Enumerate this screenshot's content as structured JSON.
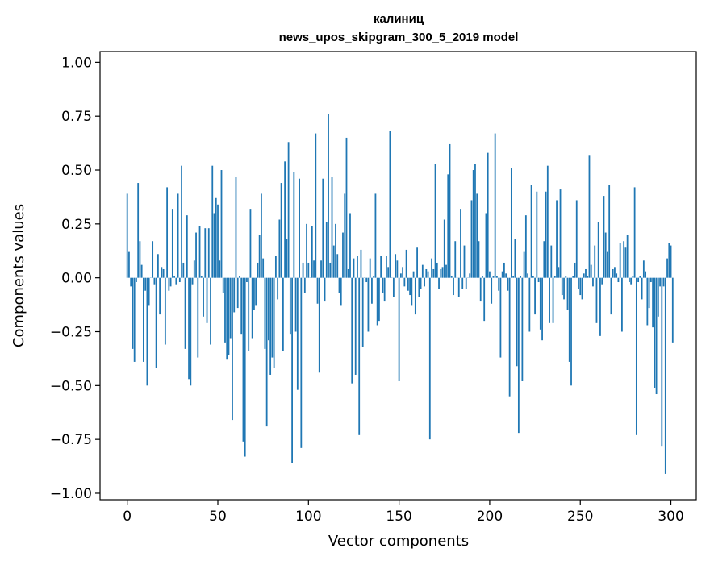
{
  "chart_data": {
    "type": "bar",
    "title": "калиниц",
    "subtitle": "news_upos_skipgram_300_5_2019 model",
    "xlabel": "Vector components",
    "ylabel": "Components values",
    "xlim": [
      -15,
      314
    ],
    "ylim": [
      -1.03,
      1.05
    ],
    "xticks": [
      0,
      50,
      100,
      150,
      200,
      250,
      300
    ],
    "xtick_labels": [
      "0",
      "50",
      "100",
      "150",
      "200",
      "250",
      "300"
    ],
    "yticks": [
      1.0,
      0.75,
      0.5,
      0.25,
      0.0,
      -0.25,
      -0.5,
      -0.75,
      -1.0
    ],
    "ytick_labels": [
      "1.00",
      "0.75",
      "0.50",
      "0.25",
      "0.00",
      "−0.25",
      "−0.50",
      "−0.75",
      "−1.00"
    ],
    "grid": false,
    "bar_color": "#1f77b4",
    "values": [
      0.39,
      0.12,
      -0.04,
      -0.33,
      -0.39,
      -0.02,
      0.44,
      0.17,
      0.06,
      -0.39,
      -0.06,
      -0.5,
      -0.13,
      0.0,
      0.17,
      -0.03,
      -0.42,
      0.11,
      -0.17,
      0.05,
      0.04,
      -0.31,
      0.42,
      -0.06,
      -0.04,
      0.32,
      0.01,
      -0.03,
      0.39,
      -0.02,
      0.52,
      0.07,
      -0.33,
      0.29,
      -0.47,
      -0.5,
      -0.03,
      0.08,
      0.21,
      -0.37,
      0.24,
      0.01,
      -0.18,
      0.23,
      -0.21,
      0.23,
      -0.31,
      0.52,
      0.3,
      0.37,
      0.34,
      0.08,
      0.5,
      -0.07,
      -0.3,
      -0.38,
      -0.36,
      -0.28,
      -0.66,
      -0.16,
      0.47,
      -0.14,
      0.01,
      -0.26,
      -0.76,
      -0.83,
      -0.02,
      -0.34,
      0.32,
      -0.28,
      -0.15,
      -0.13,
      0.07,
      0.2,
      0.39,
      0.09,
      -0.33,
      -0.69,
      -0.29,
      -0.45,
      -0.37,
      -0.42,
      0.1,
      -0.1,
      0.27,
      0.44,
      -0.34,
      0.54,
      0.18,
      0.63,
      -0.26,
      -0.86,
      0.49,
      -0.25,
      -0.52,
      0.46,
      -0.79,
      0.07,
      -0.07,
      0.25,
      0.07,
      0.0,
      0.24,
      0.08,
      0.67,
      -0.12,
      -0.44,
      0.08,
      0.46,
      -0.11,
      0.26,
      0.76,
      0.07,
      0.47,
      0.15,
      0.25,
      0.11,
      -0.07,
      -0.13,
      0.21,
      0.39,
      0.65,
      0.04,
      0.3,
      -0.49,
      0.09,
      -0.45,
      0.1,
      -0.73,
      0.13,
      -0.32,
      0.0,
      -0.02,
      -0.25,
      0.09,
      -0.12,
      0.01,
      0.39,
      -0.22,
      -0.2,
      0.1,
      -0.07,
      -0.11,
      0.1,
      0.05,
      0.68,
      0.0,
      -0.09,
      0.11,
      0.08,
      -0.48,
      0.02,
      0.05,
      -0.04,
      0.13,
      -0.06,
      -0.08,
      -0.13,
      0.03,
      -0.17,
      0.14,
      -0.09,
      -0.05,
      0.06,
      -0.04,
      0.04,
      0.03,
      -0.75,
      0.09,
      0.04,
      0.53,
      0.07,
      -0.05,
      0.04,
      0.05,
      0.27,
      0.06,
      0.48,
      0.62,
      0.01,
      -0.08,
      0.17,
      0.0,
      -0.09,
      0.32,
      -0.05,
      0.15,
      -0.05,
      0.0,
      0.02,
      0.36,
      0.5,
      0.53,
      0.39,
      0.17,
      -0.11,
      0.01,
      -0.2,
      0.3,
      0.58,
      0.03,
      -0.12,
      0.01,
      0.67,
      0.01,
      -0.06,
      -0.37,
      0.03,
      0.07,
      0.02,
      -0.06,
      -0.55,
      0.51,
      0.01,
      0.18,
      -0.41,
      -0.72,
      0.01,
      -0.48,
      0.12,
      0.29,
      0.02,
      -0.25,
      0.43,
      0.01,
      -0.17,
      0.4,
      -0.02,
      -0.24,
      -0.29,
      0.17,
      0.4,
      0.52,
      -0.21,
      0.15,
      -0.21,
      0.01,
      0.36,
      0.05,
      0.41,
      -0.08,
      -0.1,
      0.01,
      -0.15,
      -0.39,
      -0.5,
      0.01,
      0.07,
      0.36,
      -0.05,
      -0.08,
      -0.1,
      0.02,
      0.04,
      0.01,
      0.57,
      0.06,
      -0.04,
      0.15,
      -0.21,
      0.26,
      -0.27,
      -0.03,
      0.38,
      0.21,
      0.12,
      0.43,
      -0.17,
      0.04,
      0.05,
      0.02,
      -0.02,
      0.16,
      -0.25,
      0.17,
      0.14,
      0.2,
      -0.02,
      -0.03,
      0.01,
      0.42,
      -0.73,
      -0.02,
      0.01,
      -0.1,
      0.08,
      0.03,
      -0.22,
      -0.14,
      -0.02,
      -0.23,
      -0.51,
      -0.54,
      -0.18,
      -0.04,
      -0.78,
      -0.04,
      -0.91,
      0.09,
      0.16,
      0.15,
      -0.3
    ]
  }
}
